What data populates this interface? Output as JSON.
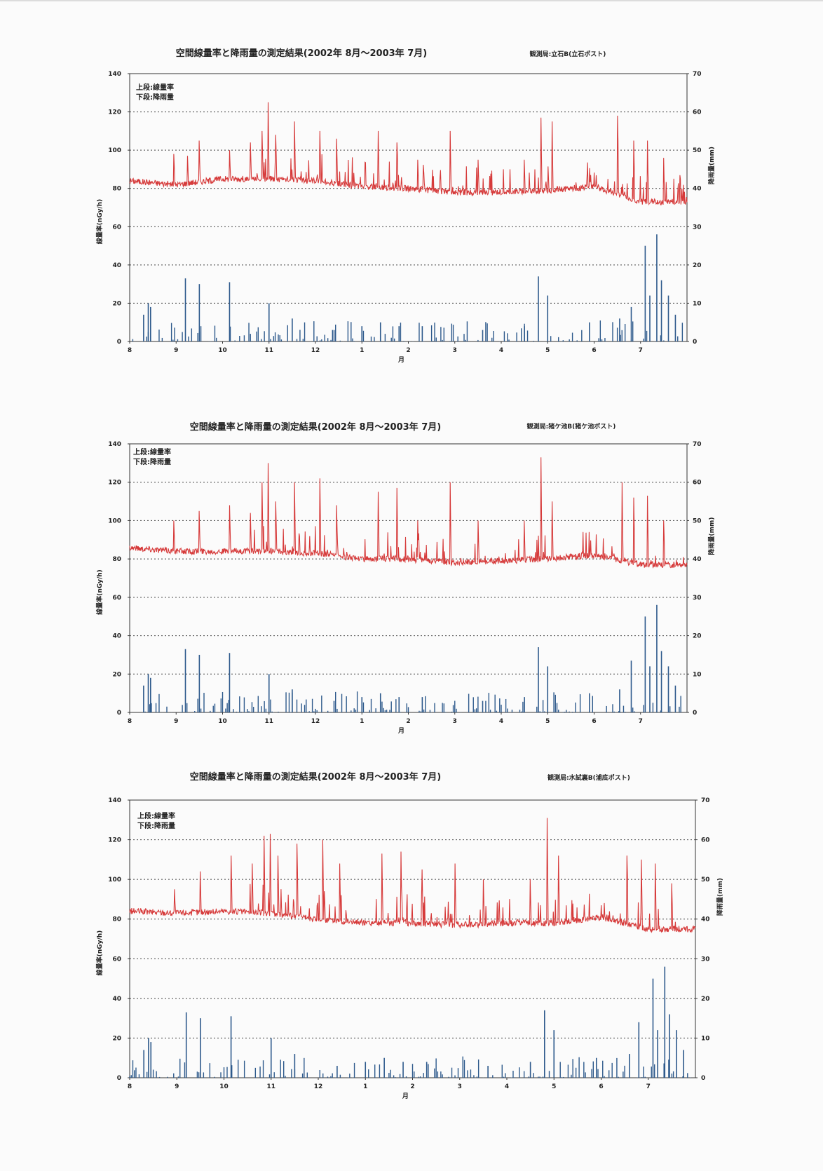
{
  "chart_data": [
    {
      "type": "line",
      "title": "空間線量率と降雨量の測定結果(2002年 8月～2003年 7月)",
      "station": "観測局:立石B(立石ポスト)",
      "legend_text": [
        "上段:線量率",
        "下段:降雨量"
      ],
      "xlabel": "月",
      "ylabel_left": "線量率(nGy/h)",
      "ylabel_right": "降雨量(mm)",
      "x_ticks": [
        "8",
        "9",
        "10",
        "11",
        "12",
        "1",
        "2",
        "3",
        "4",
        "5",
        "6",
        "7"
      ],
      "y_left_ticks": [
        "0",
        "20",
        "40",
        "60",
        "80",
        "100",
        "120",
        "140"
      ],
      "y_right_ticks": [
        "0",
        "10",
        "20",
        "30",
        "40",
        "50",
        "60",
        "70"
      ],
      "ylim_left": [
        0,
        140
      ],
      "ylim_right": [
        0,
        70
      ],
      "grid": "horizontal-dotted",
      "series": [
        {
          "name": "線量率",
          "axis": "left",
          "color": "#d63a3a",
          "baseline": [
            84,
            82,
            85,
            85,
            84,
            81,
            80,
            78,
            78,
            79,
            81,
            73
          ],
          "spikes": [
            [
              0.95,
              98
            ],
            [
              1.25,
              97
            ],
            [
              1.5,
              105
            ],
            [
              2.15,
              100
            ],
            [
              2.6,
              104
            ],
            [
              2.85,
              110
            ],
            [
              2.98,
              125
            ],
            [
              3.15,
              108
            ],
            [
              3.55,
              115
            ],
            [
              4.1,
              110
            ],
            [
              4.45,
              106
            ],
            [
              5.35,
              110
            ],
            [
              5.75,
              104
            ],
            [
              6.2,
              95
            ],
            [
              6.9,
              110
            ],
            [
              7.5,
              95
            ],
            [
              8.5,
              95
            ],
            [
              8.85,
              117
            ],
            [
              9.1,
              115
            ],
            [
              10.5,
              118
            ],
            [
              10.85,
              105
            ],
            [
              11.15,
              105
            ],
            [
              11.5,
              96
            ]
          ]
        },
        {
          "name": "降雨量",
          "axis": "right",
          "color": "#2e5a8c",
          "bars": [
            [
              0.3,
              7
            ],
            [
              0.4,
              10
            ],
            [
              0.45,
              9
            ],
            [
              1.2,
              16.5
            ],
            [
              1.5,
              15
            ],
            [
              2.15,
              15.5
            ],
            [
              3.0,
              10
            ],
            [
              3.5,
              6
            ],
            [
              4.4,
              3
            ],
            [
              5.0,
              4
            ],
            [
              5.4,
              5
            ],
            [
              5.8,
              4
            ],
            [
              6.3,
              4
            ],
            [
              7.6,
              3
            ],
            [
              8.5,
              4
            ],
            [
              8.8,
              17
            ],
            [
              9.0,
              12
            ],
            [
              9.9,
              5
            ],
            [
              10.55,
              6
            ],
            [
              10.8,
              9
            ],
            [
              11.1,
              25
            ],
            [
              11.2,
              12
            ],
            [
              11.35,
              28
            ],
            [
              11.45,
              16
            ],
            [
              11.6,
              12
            ],
            [
              11.75,
              7
            ]
          ]
        }
      ]
    },
    {
      "type": "line",
      "title": "空間線量率と降雨量の測定結果(2002年 8月～2003年 7月)",
      "station": "観測局:猪ケ池B(猪ケ池ポスト)",
      "legend_text": [
        "上段:線量率",
        "下段:降雨量"
      ],
      "xlabel": "月",
      "ylabel_left": "線量率(nGy/h)",
      "ylabel_right": "降雨量(mm)",
      "x_ticks": [
        "8",
        "9",
        "10",
        "11",
        "12",
        "1",
        "2",
        "3",
        "4",
        "5",
        "6",
        "7"
      ],
      "y_left_ticks": [
        "0",
        "20",
        "40",
        "60",
        "80",
        "100",
        "120",
        "140"
      ],
      "y_right_ticks": [
        "0",
        "10",
        "20",
        "30",
        "40",
        "50",
        "60",
        "70"
      ],
      "ylim_left": [
        0,
        140
      ],
      "ylim_right": [
        0,
        70
      ],
      "grid": "horizontal-dotted",
      "series": [
        {
          "name": "線量率",
          "axis": "left",
          "color": "#d63a3a",
          "baseline": [
            86,
            84,
            84,
            84,
            83,
            80,
            80,
            78,
            79,
            80,
            82,
            77
          ],
          "spikes": [
            [
              0.95,
              100
            ],
            [
              1.5,
              105
            ],
            [
              2.15,
              108
            ],
            [
              2.6,
              104
            ],
            [
              2.85,
              120
            ],
            [
              2.98,
              130
            ],
            [
              3.15,
              110
            ],
            [
              3.55,
              120
            ],
            [
              4.1,
              122
            ],
            [
              4.45,
              108
            ],
            [
              5.35,
              115
            ],
            [
              5.75,
              117
            ],
            [
              6.2,
              100
            ],
            [
              6.9,
              120
            ],
            [
              7.5,
              100
            ],
            [
              8.5,
              100
            ],
            [
              8.85,
              133
            ],
            [
              9.1,
              110
            ],
            [
              10.6,
              120
            ],
            [
              10.85,
              112
            ],
            [
              11.15,
              113
            ],
            [
              11.5,
              100
            ]
          ]
        },
        {
          "name": "降雨量",
          "axis": "right",
          "color": "#2e5a8c",
          "bars": [
            [
              0.3,
              7
            ],
            [
              0.4,
              10
            ],
            [
              0.45,
              9
            ],
            [
              1.2,
              16.5
            ],
            [
              1.5,
              15
            ],
            [
              2.15,
              15.5
            ],
            [
              3.0,
              10
            ],
            [
              3.5,
              6
            ],
            [
              4.4,
              3
            ],
            [
              5.0,
              4
            ],
            [
              5.4,
              5
            ],
            [
              5.8,
              4
            ],
            [
              6.3,
              4
            ],
            [
              7.6,
              3
            ],
            [
              8.5,
              4
            ],
            [
              8.8,
              17
            ],
            [
              9.0,
              12
            ],
            [
              9.9,
              5
            ],
            [
              10.55,
              6
            ],
            [
              10.8,
              13.5
            ],
            [
              11.1,
              25
            ],
            [
              11.2,
              12
            ],
            [
              11.35,
              28
            ],
            [
              11.45,
              16
            ],
            [
              11.6,
              12
            ],
            [
              11.75,
              7
            ]
          ]
        }
      ]
    },
    {
      "type": "line",
      "title": "空間線量率と降雨量の測定結果(2002年 8月～2003年 7月)",
      "station": "観測局:水試裏B(浦底ポスト)",
      "legend_text": [
        "上段:線量率",
        "下段:降雨量"
      ],
      "xlabel": "月",
      "ylabel_left": "線量率(nGy/h)",
      "ylabel_right": "降雨量(mm)",
      "x_ticks": [
        "8",
        "9",
        "10",
        "11",
        "12",
        "1",
        "2",
        "3",
        "4",
        "5",
        "6",
        "7"
      ],
      "y_left_ticks": [
        "0",
        "20",
        "40",
        "60",
        "80",
        "100",
        "120",
        "140"
      ],
      "y_right_ticks": [
        "0",
        "10",
        "20",
        "30",
        "40",
        "50",
        "60",
        "70"
      ],
      "ylim_left": [
        0,
        140
      ],
      "ylim_right": [
        0,
        70
      ],
      "grid": "horizontal-dotted",
      "series": [
        {
          "name": "線量率",
          "axis": "left",
          "color": "#d63a3a",
          "baseline": [
            84,
            83,
            84,
            83,
            80,
            78,
            78,
            77,
            78,
            78,
            81,
            75
          ],
          "spikes": [
            [
              0.95,
              95
            ],
            [
              1.5,
              104
            ],
            [
              2.15,
              112
            ],
            [
              2.6,
              108
            ],
            [
              2.85,
              122
            ],
            [
              2.98,
              123
            ],
            [
              3.15,
              112
            ],
            [
              3.55,
              118
            ],
            [
              4.1,
              120
            ],
            [
              4.45,
              108
            ],
            [
              5.35,
              113
            ],
            [
              5.75,
              114
            ],
            [
              6.2,
              105
            ],
            [
              6.9,
              108
            ],
            [
              7.5,
              100
            ],
            [
              8.5,
              100
            ],
            [
              8.85,
              131
            ],
            [
              9.1,
              112
            ],
            [
              10.55,
              112
            ],
            [
              10.85,
              110
            ],
            [
              11.15,
              108
            ],
            [
              11.5,
              98
            ]
          ]
        },
        {
          "name": "降雨量",
          "axis": "right",
          "color": "#2e5a8c",
          "bars": [
            [
              0.3,
              7
            ],
            [
              0.4,
              10
            ],
            [
              0.45,
              9
            ],
            [
              1.2,
              16.5
            ],
            [
              1.5,
              15
            ],
            [
              2.15,
              15.5
            ],
            [
              3.0,
              10
            ],
            [
              3.5,
              6
            ],
            [
              4.4,
              3
            ],
            [
              5.0,
              4
            ],
            [
              5.4,
              5
            ],
            [
              5.8,
              4
            ],
            [
              6.3,
              4
            ],
            [
              7.6,
              3
            ],
            [
              8.5,
              4
            ],
            [
              8.8,
              17
            ],
            [
              9.0,
              12
            ],
            [
              9.9,
              5
            ],
            [
              10.6,
              6
            ],
            [
              10.8,
              14
            ],
            [
              11.1,
              25
            ],
            [
              11.2,
              12
            ],
            [
              11.35,
              28
            ],
            [
              11.45,
              16
            ],
            [
              11.6,
              12
            ],
            [
              11.75,
              7
            ]
          ]
        }
      ]
    }
  ]
}
